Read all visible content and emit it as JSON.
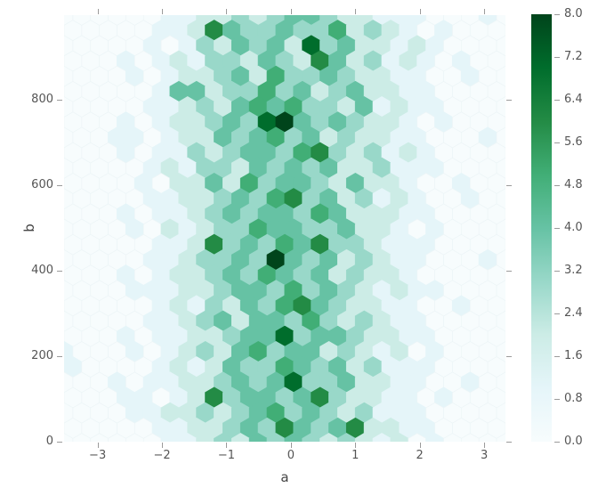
{
  "chart_data": {
    "type": "hexbin",
    "title": "",
    "xlabel": "a",
    "ylabel": "b",
    "x_ticks": [
      -3,
      -2,
      -1,
      0,
      1,
      2,
      3
    ],
    "x_tick_labels": [
      "−3",
      "−2",
      "−1",
      "0",
      "1",
      "2",
      "3"
    ],
    "y_ticks": [
      0,
      200,
      400,
      600,
      800
    ],
    "y_tick_labels": [
      "0",
      "200",
      "400",
      "600",
      "800"
    ],
    "xlim": [
      -3.52,
      3.33
    ],
    "ylim": [
      0,
      998
    ],
    "grid": false,
    "gridsize": 25,
    "colormap": "BuGn",
    "colormap_hex": [
      "#f7fcfd",
      "#e5f5f9",
      "#ccece6",
      "#99d8c9",
      "#66c2a4",
      "#41ae76",
      "#238b45",
      "#006d2c",
      "#00441b"
    ],
    "colorbar": {
      "position": "right",
      "min": 0.0,
      "max": 8.0,
      "tick_values": [
        0.0,
        0.8,
        1.6,
        2.4,
        3.2,
        4.0,
        4.8,
        5.6,
        6.4,
        7.2,
        8.0
      ],
      "tick_labels": [
        "0.0",
        "0.8",
        "1.6",
        "2.4",
        "3.2",
        "4.0",
        "4.8",
        "5.6",
        "6.4",
        "7.2",
        "8.0"
      ]
    },
    "bin_counts": {
      "description": "Hexagonal bin counts (0-8), rows listed top (b~998) to bottom (b~0). Rows alternate: even index rows have 26 edge-aligned cells (first/last clipped at plot edges), odd index rows have 25 half-cell-offset cells. Each character is one hexagon's count, mapped through the BuGn colormap.",
      "n_cols": 25,
      "n_rows": 29,
      "rows_top_to_bottom": [
        "00000011223234432211100010",
        "0000011264334335232101000",
        "00000101324342734221210000",
        "0001012133243264231210100",
        "00001012234253343221100100",
        "0000014423353423422110000",
        "00000112324545332412110000",
        "0001012234378434322101000",
        "00011012243453423221100010",
        "0001011323443563231210000",
        "00000121332434342231110000",
        "0000102242534432422100100",
        "00000112234356342312100100",
        "0001011234344354222110000",
        "00001021233544334221010000",
        "0000011263435463321110000",
        "00000112334384342321100010",
        "0001012234354342322100000",
        "00001112234435343212110000",
        "0000012132435643221100100",
        "00000112342443532321100000",
        "0001011223447344322110000",
        "10001012324534423212010000",
        "1000012124335434231110000",
        "00010112234347334221100100",
        "0001101263443463221101000",
        "00001122323453432311100000",
        "0000011223436434622110000",
        "00000011232434323212010000"
      ]
    },
    "colors": {
      "figure_background": "#ffffff",
      "tick_color": "#9b9b9b",
      "tick_label_color": "#555555",
      "axis_label_color": "#444444",
      "zero_bin_color": "#f7fcfd",
      "max_bin_color": "#00441b"
    }
  }
}
